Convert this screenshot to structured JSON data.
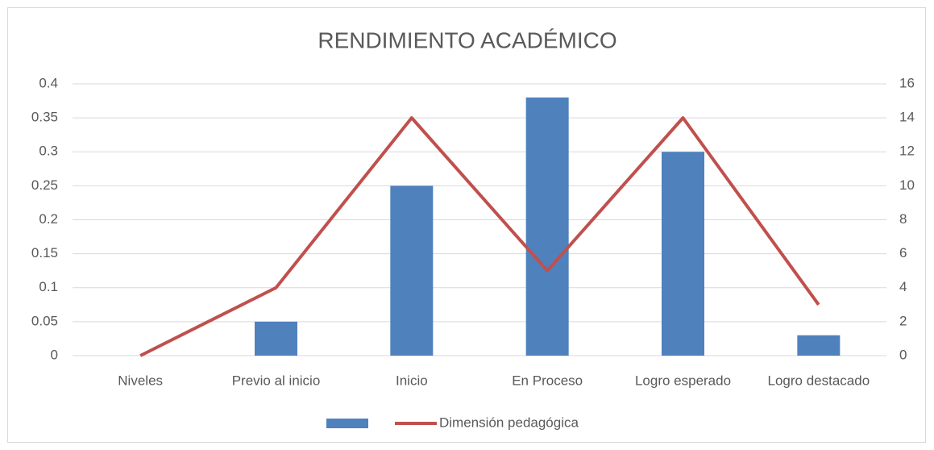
{
  "chart_data": {
    "type": "bar",
    "title": "RENDIMIENTO ACADÉMICO",
    "categories": [
      "Niveles",
      "Previo al inicio",
      "Inicio",
      "En Proceso",
      "Logro esperado",
      "Logro destacado"
    ],
    "series": [
      {
        "type": "bar",
        "color": "#4f81bd",
        "values": [
          0,
          0.05,
          0.25,
          0.38,
          0.3,
          0.03
        ]
      },
      {
        "type": "line",
        "name": "Dimensión pedagógica",
        "color": "#c0504d",
        "axis": "y2",
        "values": [
          0,
          4,
          14,
          5,
          14,
          3
        ]
      }
    ],
    "ylim": [
      0,
      0.4
    ],
    "yticks": [
      0,
      0.05,
      0.1,
      0.15,
      0.2,
      0.25,
      0.3,
      0.35,
      0.4
    ],
    "y2lim": [
      0,
      16
    ],
    "y2ticks": [
      0,
      2,
      4,
      6,
      8,
      10,
      12,
      14,
      16
    ],
    "grid": true,
    "legend": "bottom"
  }
}
